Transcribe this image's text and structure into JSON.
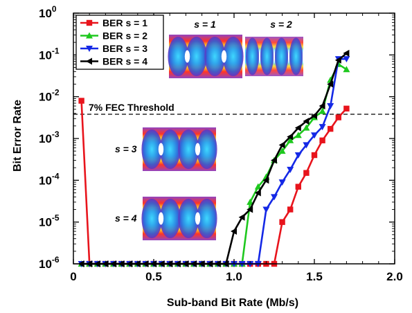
{
  "chart_data": {
    "type": "line",
    "xlabel": "Sub-band Bit Rate (Mb/s)",
    "ylabel": "Bit Error Rate",
    "xlim": [
      0,
      2.0
    ],
    "ylim": [
      1e-06,
      1
    ],
    "yscale": "log",
    "x_ticks": [
      "0",
      "0.5",
      "1.0",
      "1.5",
      "2.0"
    ],
    "y_ticks": [
      {
        "base": "10",
        "exp": "0"
      },
      {
        "base": "10",
        "exp": "-1"
      },
      {
        "base": "10",
        "exp": "-2"
      },
      {
        "base": "10",
        "exp": "-3"
      },
      {
        "base": "10",
        "exp": "-4"
      },
      {
        "base": "10",
        "exp": "-5"
      },
      {
        "base": "10",
        "exp": "-6"
      }
    ],
    "grid": false,
    "legend_position": "top-left",
    "threshold": {
      "label": "7% FEC Threshold",
      "value": 0.0038
    },
    "inset_labels": [
      "s = 1",
      "s = 2",
      "s = 3",
      "s = 4"
    ],
    "series": [
      {
        "name": "BER s = 1",
        "color": "#e8141c",
        "marker": "square",
        "x": [
          0.05,
          0.1,
          0.15,
          0.2,
          0.25,
          0.3,
          0.35,
          0.4,
          0.45,
          0.5,
          0.55,
          0.6,
          0.65,
          0.7,
          0.75,
          0.8,
          0.85,
          0.9,
          0.95,
          1.0,
          1.05,
          1.1,
          1.15,
          1.2,
          1.25,
          1.3,
          1.35,
          1.4,
          1.45,
          1.5,
          1.55,
          1.6,
          1.65,
          1.7
        ],
        "y": [
          0.008,
          1e-06,
          1e-06,
          1e-06,
          1e-06,
          1e-06,
          1e-06,
          1e-06,
          1e-06,
          1e-06,
          1e-06,
          1e-06,
          1e-06,
          1e-06,
          1e-06,
          1e-06,
          1e-06,
          1e-06,
          1e-06,
          1e-06,
          1e-06,
          1e-06,
          1e-06,
          1e-06,
          1e-06,
          1e-05,
          2e-05,
          7e-05,
          0.00015,
          0.0004,
          0.0009,
          0.0017,
          0.0032,
          0.0052
        ]
      },
      {
        "name": "BER s = 2",
        "color": "#1ec81e",
        "marker": "triangle-up",
        "x": [
          0.05,
          0.1,
          0.15,
          0.2,
          0.25,
          0.3,
          0.35,
          0.4,
          0.45,
          0.5,
          0.55,
          0.6,
          0.65,
          0.7,
          0.75,
          0.8,
          0.85,
          0.9,
          0.95,
          1.0,
          1.05,
          1.1,
          1.15,
          1.2,
          1.25,
          1.3,
          1.35,
          1.4,
          1.45,
          1.5,
          1.55,
          1.6,
          1.65,
          1.7
        ],
        "y": [
          1e-06,
          1e-06,
          1e-06,
          1e-06,
          1e-06,
          1e-06,
          1e-06,
          1e-06,
          1e-06,
          1e-06,
          1e-06,
          1e-06,
          1e-06,
          1e-06,
          1e-06,
          1e-06,
          1e-06,
          1e-06,
          1e-06,
          1e-06,
          1e-06,
          3e-05,
          7e-05,
          0.00012,
          0.0003,
          0.0005,
          0.0009,
          0.0012,
          0.0018,
          0.0032,
          0.0045,
          0.025,
          0.06,
          0.045
        ]
      },
      {
        "name": "BER s = 3",
        "color": "#1428e6",
        "marker": "triangle-down",
        "x": [
          0.05,
          0.1,
          0.15,
          0.2,
          0.25,
          0.3,
          0.35,
          0.4,
          0.45,
          0.5,
          0.55,
          0.6,
          0.65,
          0.7,
          0.75,
          0.8,
          0.85,
          0.9,
          0.95,
          1.0,
          1.05,
          1.1,
          1.15,
          1.2,
          1.25,
          1.3,
          1.35,
          1.4,
          1.45,
          1.5,
          1.55,
          1.6,
          1.65,
          1.7
        ],
        "y": [
          1e-06,
          1e-06,
          1e-06,
          1e-06,
          1e-06,
          1e-06,
          1e-06,
          1e-06,
          1e-06,
          1e-06,
          1e-06,
          1e-06,
          1e-06,
          1e-06,
          1e-06,
          1e-06,
          1e-06,
          1e-06,
          1e-06,
          1e-06,
          1e-06,
          1e-06,
          1e-06,
          2e-05,
          4e-05,
          9e-05,
          0.00018,
          0.0004,
          0.0007,
          0.0012,
          0.0019,
          0.006,
          0.08,
          0.08
        ]
      },
      {
        "name": "BER s = 4",
        "color": "#000000",
        "marker": "triangle-left",
        "x": [
          0.05,
          0.1,
          0.15,
          0.2,
          0.25,
          0.3,
          0.35,
          0.4,
          0.45,
          0.5,
          0.55,
          0.6,
          0.65,
          0.7,
          0.75,
          0.8,
          0.85,
          0.9,
          0.95,
          1.0,
          1.05,
          1.1,
          1.15,
          1.2,
          1.25,
          1.3,
          1.35,
          1.4,
          1.45,
          1.5,
          1.55,
          1.6,
          1.65,
          1.7
        ],
        "y": [
          1e-06,
          1e-06,
          1e-06,
          1e-06,
          1e-06,
          1e-06,
          1e-06,
          1e-06,
          1e-06,
          1e-06,
          1e-06,
          1e-06,
          1e-06,
          1e-06,
          1e-06,
          1e-06,
          1e-06,
          1e-06,
          1e-06,
          6e-06,
          1.3e-05,
          2e-05,
          5e-05,
          0.0001,
          0.0003,
          0.0007,
          0.0011,
          0.0018,
          0.0026,
          0.0035,
          0.006,
          0.02,
          0.075,
          0.11
        ]
      }
    ]
  }
}
